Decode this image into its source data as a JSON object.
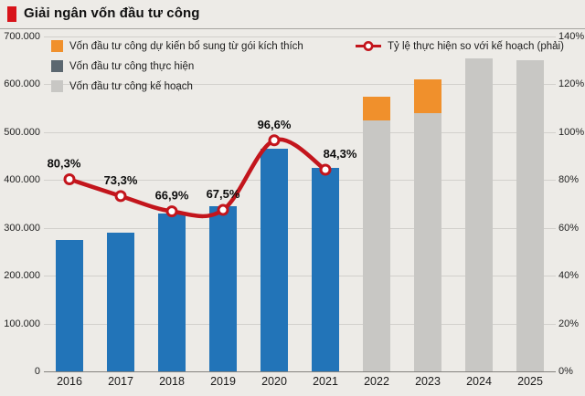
{
  "header": {
    "title": "Giải ngân vốn đầu tư công",
    "accent_color": "#d8131a"
  },
  "legend": {
    "items": [
      {
        "label": "Vốn đầu tư công dự kiến bổ sung từ gói kích thích",
        "swatch": "square",
        "color": "#f0902c"
      },
      {
        "label": "Vốn đầu tư công thực hiện",
        "swatch": "square",
        "color": "#5b6770"
      },
      {
        "label": "Vốn đầu tư công kế hoạch",
        "swatch": "square",
        "color": "#c8c7c4"
      },
      {
        "label": "Tỷ lệ thực hiện so với kế hoạch (phải)",
        "swatch": "line-marker",
        "color": "#c3151c"
      }
    ]
  },
  "chart_data": {
    "type": "bar",
    "title": "Giải ngân vốn đầu tư công",
    "categories": [
      "2016",
      "2017",
      "2018",
      "2019",
      "2020",
      "2021",
      "2022",
      "2023",
      "2024",
      "2025"
    ],
    "series": [
      {
        "name": "Vốn đầu tư công thực hiện",
        "type": "bar",
        "color": "#2274b8",
        "values": [
          275000,
          290000,
          330000,
          345000,
          465000,
          425000,
          null,
          null,
          null,
          null
        ]
      },
      {
        "name": "Vốn đầu tư công kế hoạch",
        "type": "bar",
        "color": "#c8c7c4",
        "values": [
          null,
          null,
          null,
          null,
          null,
          null,
          525000,
          540000,
          655000,
          650000
        ]
      },
      {
        "name": "Vốn đầu tư công dự kiến bổ sung từ gói kích thích",
        "type": "bar-stacked-on-plan",
        "color": "#f0902c",
        "values": [
          null,
          null,
          null,
          null,
          null,
          null,
          50000,
          70000,
          null,
          null
        ]
      },
      {
        "name": "Tỷ lệ thực hiện so với kế hoạch (phải)",
        "type": "line",
        "axis": "right",
        "color": "#c3151c",
        "values": [
          80.3,
          73.3,
          66.9,
          67.5,
          96.6,
          84.3,
          null,
          null,
          null,
          null
        ],
        "point_labels": [
          "80,3%",
          "73,3%",
          "66,9%",
          "67,5%",
          "96,6%",
          "84,3%"
        ]
      }
    ],
    "left_axis": {
      "min": 0,
      "max": 700000,
      "tick_labels": [
        "700.000",
        "600.000",
        "500.000",
        "400.000",
        "300.000",
        "200.000",
        "100.000",
        "0"
      ]
    },
    "right_axis": {
      "min": 0,
      "max": 140,
      "unit": "%",
      "tick_labels": [
        "140%",
        "120%",
        "100%",
        "80%",
        "60%",
        "40%",
        "20%",
        "0%"
      ]
    },
    "grid": "horizontal",
    "legend_position": "top-left-inside"
  }
}
